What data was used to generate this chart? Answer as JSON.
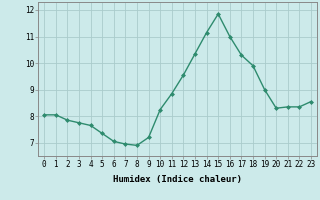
{
  "x": [
    0,
    1,
    2,
    3,
    4,
    5,
    6,
    7,
    8,
    9,
    10,
    11,
    12,
    13,
    14,
    15,
    16,
    17,
    18,
    19,
    20,
    21,
    22,
    23
  ],
  "y": [
    8.05,
    8.05,
    7.85,
    7.75,
    7.65,
    7.35,
    7.05,
    6.95,
    6.9,
    7.2,
    8.25,
    8.85,
    9.55,
    10.35,
    11.15,
    11.85,
    11.0,
    10.3,
    9.9,
    9.0,
    8.3,
    8.35,
    8.35,
    8.55
  ],
  "line_color": "#2e8b6e",
  "marker": "D",
  "marker_size": 2,
  "line_width": 1.0,
  "bg_color": "#cceaea",
  "grid_color": "#aacccc",
  "xlabel": "Humidex (Indice chaleur)",
  "xlim": [
    -0.5,
    23.5
  ],
  "ylim": [
    6.5,
    12.3
  ],
  "yticks": [
    7,
    8,
    9,
    10,
    11,
    12
  ],
  "xticks": [
    0,
    1,
    2,
    3,
    4,
    5,
    6,
    7,
    8,
    9,
    10,
    11,
    12,
    13,
    14,
    15,
    16,
    17,
    18,
    19,
    20,
    21,
    22,
    23
  ],
  "xlabel_fontsize": 6.5,
  "tick_fontsize": 5.5
}
